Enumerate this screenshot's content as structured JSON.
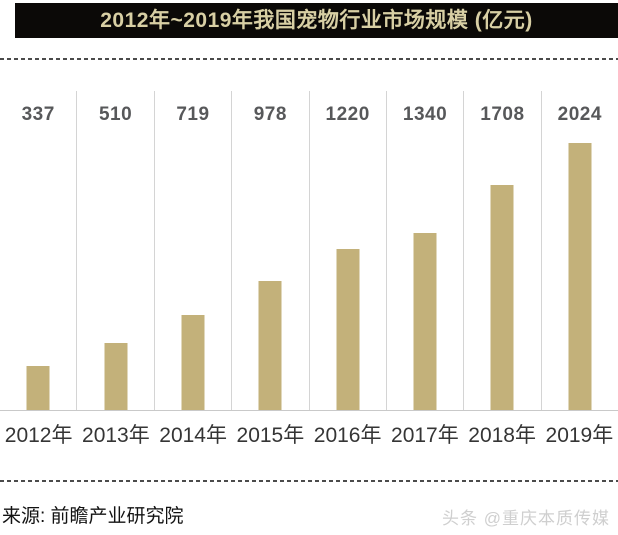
{
  "header": {
    "title": "2012年~2019年我国宠物行业市场规模 (亿元)"
  },
  "chart_data": {
    "type": "bar",
    "title": "2012年~2019年我国宠物行业市场规模 (亿元)",
    "categories": [
      "2012年",
      "2013年",
      "2014年",
      "2015年",
      "2016年",
      "2017年",
      "2018年",
      "2019年"
    ],
    "values": [
      337,
      510,
      719,
      978,
      1220,
      1340,
      1708,
      2024
    ],
    "xlabel": "",
    "ylabel": "",
    "ylim": [
      0,
      2400
    ],
    "value_labels_shown": true,
    "grid": "vertical-column-dividers",
    "legend": "none"
  },
  "footer": {
    "source": "来源: 前瞻产业研究院",
    "watermark": "头条 @重庆本质传媒"
  },
  "colors": {
    "banner_bg": "#0b0907",
    "banner_text": "#d8cfa4",
    "bar": "#c3b17a",
    "value_text": "#57585a",
    "axis_label_text": "#353535",
    "divider": "#d4d4d4",
    "baseline": "#c9c9c9",
    "dash": "#4b4b4b",
    "watermark_text": "#cfcfcf"
  }
}
